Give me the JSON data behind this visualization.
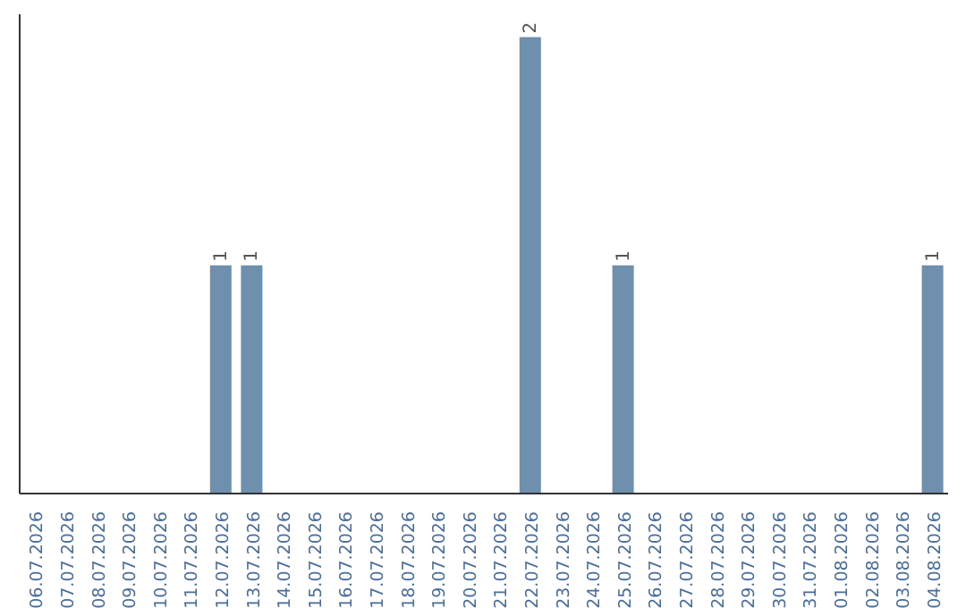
{
  "chart_data": {
    "type": "bar",
    "categories": [
      "06.07.2026",
      "07.07.2026",
      "08.07.2026",
      "09.07.2026",
      "10.07.2026",
      "11.07.2026",
      "12.07.2026",
      "13.07.2026",
      "14.07.2026",
      "15.07.2026",
      "16.07.2026",
      "17.07.2026",
      "18.07.2026",
      "19.07.2026",
      "20.07.2026",
      "21.07.2026",
      "22.07.2026",
      "23.07.2026",
      "24.07.2026",
      "25.07.2026",
      "26.07.2026",
      "27.07.2026",
      "28.07.2026",
      "29.07.2026",
      "30.07.2026",
      "31.07.2026",
      "01.08.2026",
      "02.08.2026",
      "03.08.2026",
      "04.08.2026"
    ],
    "values": [
      0,
      0,
      0,
      0,
      0,
      0,
      1,
      1,
      0,
      0,
      0,
      0,
      0,
      0,
      0,
      0,
      2,
      0,
      0,
      1,
      0,
      0,
      0,
      0,
      0,
      0,
      0,
      0,
      0,
      1
    ],
    "value_labels": [
      null,
      null,
      null,
      null,
      null,
      null,
      "1",
      "1",
      null,
      null,
      null,
      null,
      null,
      null,
      null,
      null,
      "2",
      null,
      null,
      "1",
      null,
      null,
      null,
      null,
      null,
      null,
      null,
      null,
      null,
      "1"
    ],
    "color": "#6e8fad"
  }
}
